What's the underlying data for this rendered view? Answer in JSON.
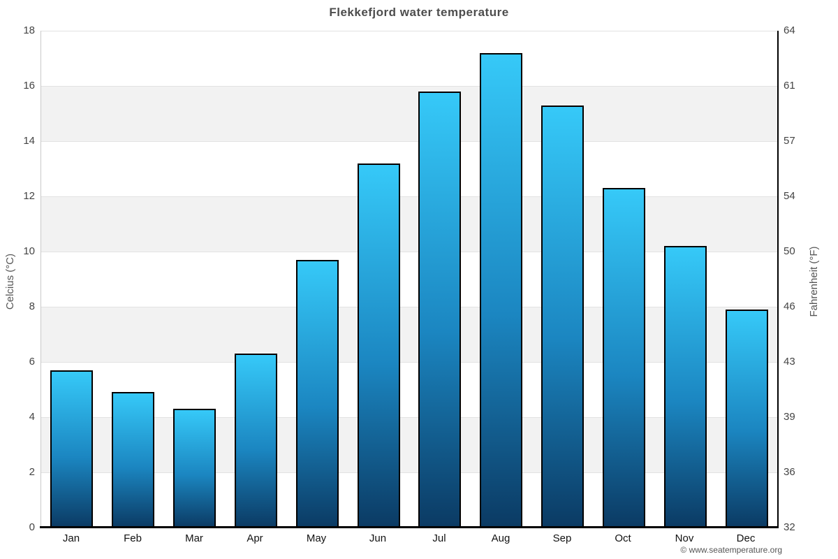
{
  "title": "Flekkefjord water temperature",
  "copyright": "© www.seatemperature.org",
  "chart_data": {
    "type": "bar",
    "title": "Flekkefjord water temperature",
    "categories": [
      "Jan",
      "Feb",
      "Mar",
      "Apr",
      "May",
      "Jun",
      "Jul",
      "Aug",
      "Sep",
      "Oct",
      "Nov",
      "Dec"
    ],
    "values": [
      5.7,
      4.9,
      4.3,
      6.3,
      9.7,
      13.2,
      15.8,
      17.2,
      15.3,
      12.3,
      10.2,
      7.9
    ],
    "unit": "°C",
    "ylabel_left": "Celcius (°C)",
    "ylabel_right": "Fahrenheit (°F)",
    "ylim": [
      0,
      18
    ],
    "yticks_celsius": [
      18,
      16,
      14,
      12,
      10,
      8,
      6,
      4,
      2,
      0
    ],
    "yticks_fahrenheit": [
      64,
      61,
      57,
      54,
      50,
      46,
      43,
      39,
      36,
      32
    ],
    "legend": "none",
    "grid": "horizontal alternating bands",
    "band_color": "#f2f2f2",
    "gridline_color": "#e2e2e2",
    "bar_gradient_top": "#36c9f8",
    "bar_gradient_bottom": "#0b3a63",
    "bar_border_color": "#000000",
    "title_color": "#4d4d4d"
  }
}
